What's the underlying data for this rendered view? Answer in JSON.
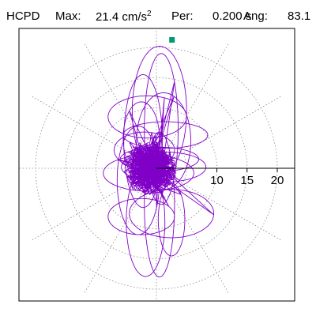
{
  "header": {
    "station": "HCPD",
    "max_label": "Max:",
    "max_value": "21.4",
    "max_unit_base": "cm/s",
    "max_unit_exp": "2",
    "per_label": "Per:",
    "per_value": "0.200 s",
    "ang_label": "Ang:",
    "ang_value": "83.1"
  },
  "chart_data": {
    "type": "line",
    "coordinate_system": "polar",
    "radial_ticks": [
      5,
      10,
      15,
      20
    ],
    "radial_tick_labels": [
      "10",
      "15",
      "20"
    ],
    "rmax": 24,
    "angular_grid_step_deg": 30,
    "grid": true,
    "grid_style": "dotted",
    "trace_color": "#8000c8",
    "marker_color": "#009a73",
    "peak": {
      "value": 21.4,
      "angle_deg": 83.1
    },
    "trace_summary": {
      "core_radius": 3.5,
      "extent_north": 21.4,
      "extent_south": 19.7,
      "extent_east": 8,
      "extent_west": 8.5
    }
  }
}
